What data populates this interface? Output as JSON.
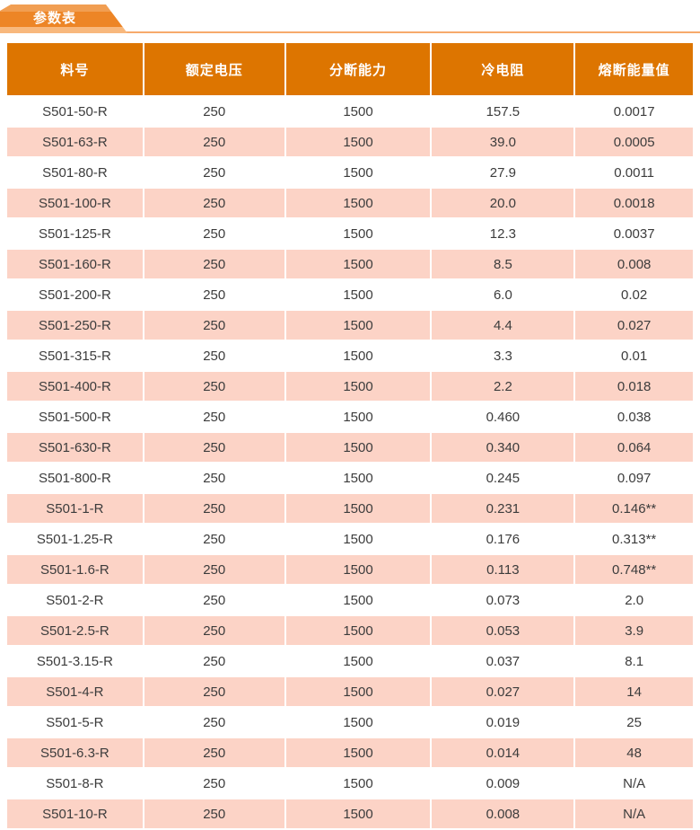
{
  "page": {
    "tab_label": "参数表"
  },
  "table": {
    "columns": [
      "料号",
      "额定电压",
      "分断能力",
      "冷电阻",
      "熔断能量值"
    ],
    "rows": [
      [
        "S501-50-R",
        "250",
        "1500",
        "157.5",
        "0.0017"
      ],
      [
        "S501-63-R",
        "250",
        "1500",
        "39.0",
        "0.0005"
      ],
      [
        "S501-80-R",
        "250",
        "1500",
        "27.9",
        "0.0011"
      ],
      [
        "S501-100-R",
        "250",
        "1500",
        "20.0",
        "0.0018"
      ],
      [
        "S501-125-R",
        "250",
        "1500",
        "12.3",
        "0.0037"
      ],
      [
        "S501-160-R",
        "250",
        "1500",
        "8.5",
        "0.008"
      ],
      [
        "S501-200-R",
        "250",
        "1500",
        "6.0",
        "0.02"
      ],
      [
        "S501-250-R",
        "250",
        "1500",
        "4.4",
        "0.027"
      ],
      [
        "S501-315-R",
        "250",
        "1500",
        "3.3",
        "0.01"
      ],
      [
        "S501-400-R",
        "250",
        "1500",
        "2.2",
        "0.018"
      ],
      [
        "S501-500-R",
        "250",
        "1500",
        "0.460",
        "0.038"
      ],
      [
        "S501-630-R",
        "250",
        "1500",
        "0.340",
        "0.064"
      ],
      [
        "S501-800-R",
        "250",
        "1500",
        "0.245",
        "0.097"
      ],
      [
        "S501-1-R",
        "250",
        "1500",
        "0.231",
        "0.146**"
      ],
      [
        "S501-1.25-R",
        "250",
        "1500",
        "0.176",
        "0.313**"
      ],
      [
        "S501-1.6-R",
        "250",
        "1500",
        "0.113",
        "0.748**"
      ],
      [
        "S501-2-R",
        "250",
        "1500",
        "0.073",
        "2.0"
      ],
      [
        "S501-2.5-R",
        "250",
        "1500",
        "0.053",
        "3.9"
      ],
      [
        "S501-3.15-R",
        "250",
        "1500",
        "0.037",
        "8.1"
      ],
      [
        "S501-4-R",
        "250",
        "1500",
        "0.027",
        "14"
      ],
      [
        "S501-5-R",
        "250",
        "1500",
        "0.019",
        "25"
      ],
      [
        "S501-6.3-R",
        "250",
        "1500",
        "0.014",
        "48"
      ],
      [
        "S501-8-R",
        "250",
        "1500",
        "0.009",
        "N/A"
      ],
      [
        "S501-10-R",
        "250",
        "1500",
        "0.008",
        "N/A"
      ]
    ]
  },
  "colors": {
    "header_bg": "#dd7500",
    "alt_row_bg": "#fcd3c6",
    "tab_main": "#ed8526",
    "tab_top": "#f19e52",
    "tab_bottom": "#f8b87d",
    "tab_underline": "#f7aa6c",
    "header_text": "#ffffff",
    "body_text": "#3c3c3c"
  }
}
